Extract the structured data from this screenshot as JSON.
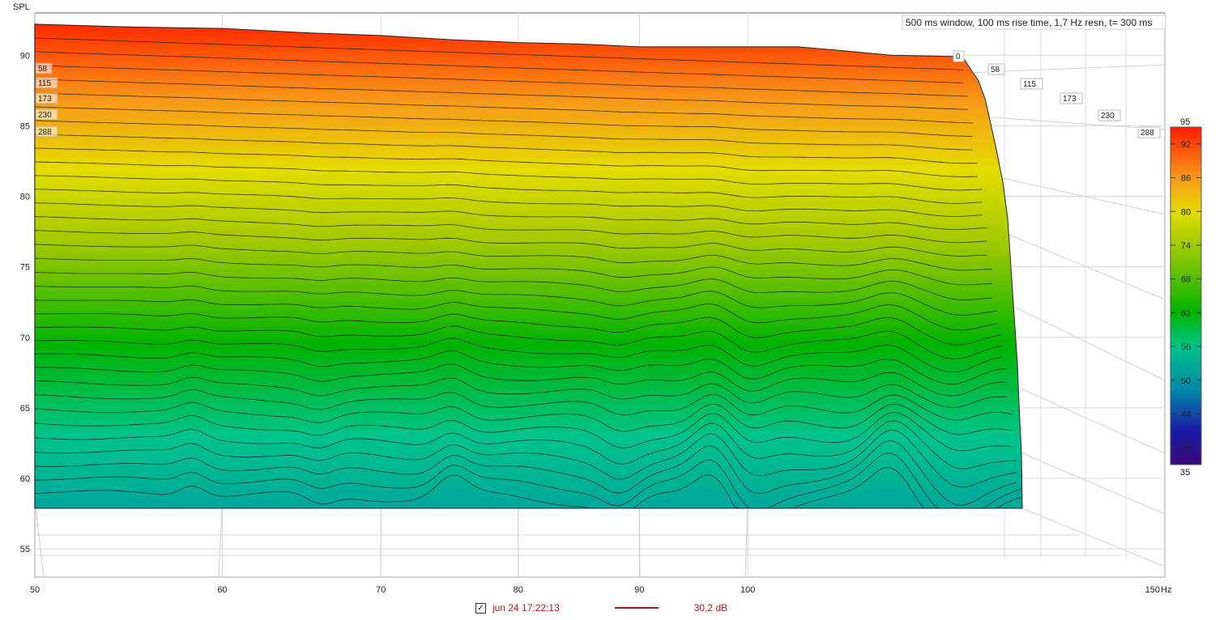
{
  "chart_data": {
    "type": "waterfall",
    "title": "500 ms window, 100 ms rise time,  1,7 Hz resn, t= 300 ms",
    "ylabel": "SPL",
    "xunit": "Hz",
    "x_ticks": [
      "50",
      "60",
      "70",
      "80",
      "90",
      "100",
      "150"
    ],
    "y_ticks": [
      "90",
      "85",
      "80",
      "75",
      "70",
      "65",
      "60",
      "55"
    ],
    "xlim": [
      50,
      150
    ],
    "ylim": [
      53,
      93
    ],
    "time_ms": [
      "0",
      "58",
      "115",
      "173",
      "230",
      "288"
    ],
    "time_labels_left": [
      "58",
      "115",
      "173",
      "230",
      "288"
    ],
    "colorbar": {
      "min": "35",
      "max": "95",
      "ticks": [
        "92",
        "86",
        "80",
        "74",
        "68",
        "62",
        "56",
        "50",
        "44",
        "38"
      ]
    },
    "first_slice_spl": {
      "freq_hz": [
        50,
        55,
        60,
        65,
        70,
        75,
        80,
        85,
        90,
        95,
        100,
        105,
        110,
        115,
        120
      ],
      "spl_db": [
        92.2,
        92.0,
        91.9,
        91.6,
        91.4,
        91.1,
        90.9,
        90.8,
        90.6,
        90.6,
        90.6,
        90.6,
        90.3,
        90.0,
        89.9
      ]
    },
    "colors": {
      "red": "#ff2a00",
      "orange": "#f79a1a",
      "yellow": "#e4dc00",
      "green": "#00b400",
      "teal": "#00a89c",
      "floor": "#f4f4f4"
    }
  },
  "legend": {
    "checkbox_mark": "✓",
    "measurement_name": "jun 24 17:22:13",
    "value": "30,2 dB"
  }
}
